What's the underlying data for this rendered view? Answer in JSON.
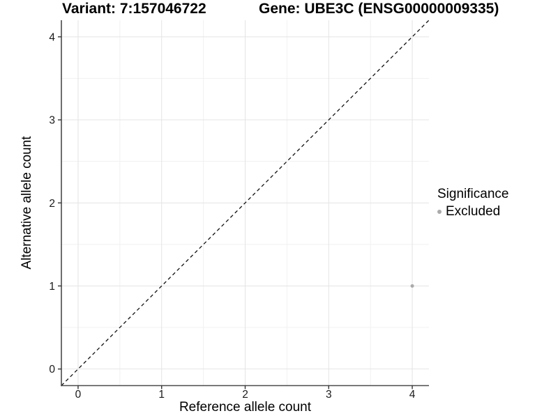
{
  "chart_data": {
    "type": "scatter",
    "title_left": "Variant: 7:157046722",
    "title_right": "Gene: UBE3C (ENSG00000009335)",
    "xlabel": "Reference allele count",
    "ylabel": "Alternative allele count",
    "xlim": [
      -0.2,
      4.2
    ],
    "ylim": [
      -0.2,
      4.2
    ],
    "x_ticks": [
      0,
      1,
      2,
      3,
      4
    ],
    "y_ticks": [
      0,
      1,
      2,
      3,
      4
    ],
    "x_minor_gridlines": [
      0.5,
      1.5,
      2.5,
      3.5
    ],
    "y_minor_gridlines": [
      0.5,
      1.5,
      2.5,
      3.5
    ],
    "grid": "major+minor",
    "legend": {
      "title": "Significance",
      "position": "right",
      "entries": [
        {
          "label": "Excluded",
          "color": "#aaaaaa",
          "marker": "circle-icon"
        }
      ]
    },
    "series": [
      {
        "name": "Excluded",
        "color": "#aaaaaa",
        "points": [
          {
            "x": 4,
            "y": 1
          }
        ]
      }
    ],
    "reference_line": {
      "slope": 1,
      "intercept": 0,
      "style": "dashed",
      "color": "#111111"
    }
  },
  "style": {
    "background": "#ffffff",
    "grid_major_color": "#e4e4e4",
    "grid_minor_color": "#f1f1f1",
    "axis_line_color": "#4a4a4a",
    "tick_color": "#333333",
    "tick_label_color": "#1a1a1a",
    "point_color": "#aaaaaa",
    "dashed_line_color": "#111111"
  }
}
